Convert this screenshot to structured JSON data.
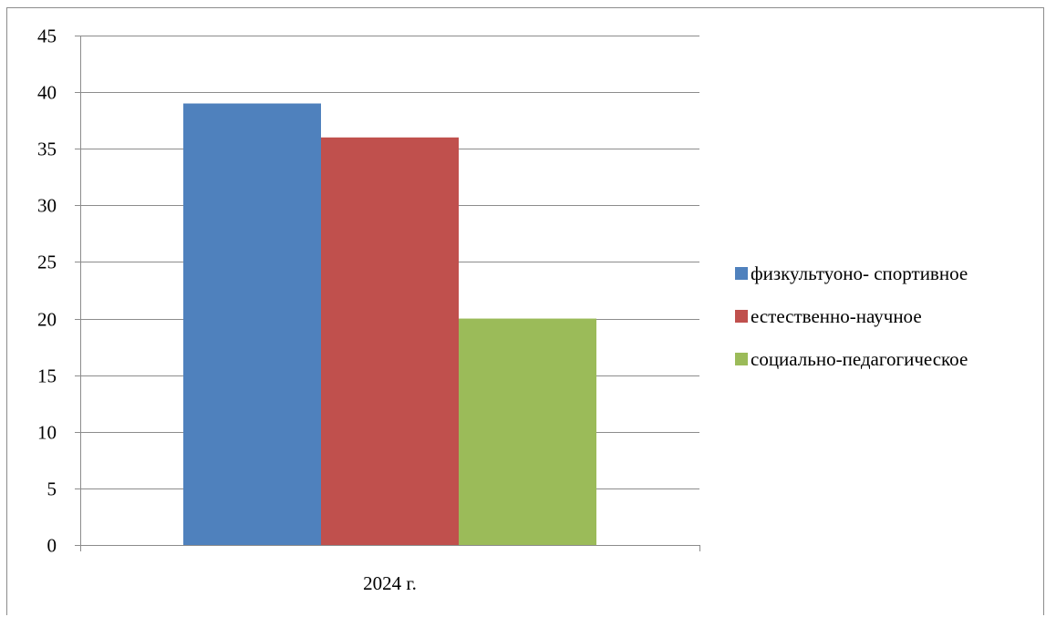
{
  "chart_data": {
    "type": "bar",
    "title": "",
    "xlabel": "",
    "ylabel": "",
    "categories": [
      "2024 г."
    ],
    "series": [
      {
        "name": "физкультуоно- спортивное",
        "values": [
          39
        ],
        "color": "#4f81bd"
      },
      {
        "name": "естественно-научное",
        "values": [
          36
        ],
        "color": "#c0504d"
      },
      {
        "name": "социально-педагогическое",
        "values": [
          20
        ],
        "color": "#9bbb59"
      }
    ],
    "ylim": [
      0,
      45
    ],
    "yticks": [
      0,
      5,
      10,
      15,
      20,
      25,
      30,
      35,
      40,
      45
    ],
    "grid": true,
    "legend_position": "right"
  }
}
